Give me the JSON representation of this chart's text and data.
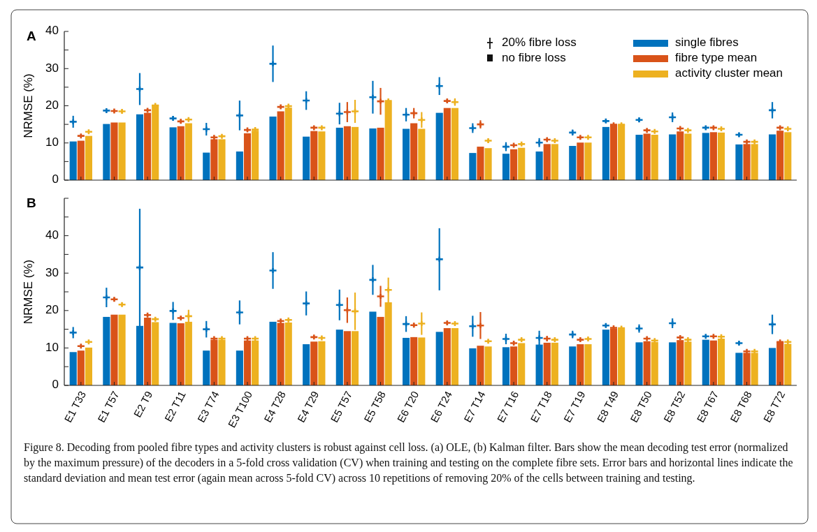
{
  "chart_data": [
    {
      "type": "bar",
      "title": "A",
      "ylabel": "NRMSE (%)",
      "legend": "top right",
      "grid": false,
      "tick_labels": "y",
      "categories": [
        "E1 T33",
        "E1 T57",
        "E2 T9",
        "E2 T11",
        "E3 T74",
        "E3 T100",
        "E4 T28",
        "E4 T29",
        "E5 T57",
        "E5 T58",
        "E6 T20",
        "E6 T24",
        "E7 T14",
        "E7 T16",
        "E7 T18",
        "E7 T19",
        "E8 T49",
        "E8 T50",
        "E8 T52",
        "E8 T67",
        "E8 T68",
        "E8 T72"
      ],
      "ylim": [
        0,
        40
      ],
      "yticks": [
        0,
        {
          "value": 5,
          "label": null
        },
        10,
        {
          "value": 15,
          "label": null
        },
        20,
        {
          "value": 25,
          "label": null
        },
        30,
        {
          "value": 35,
          "label": null
        },
        40
      ],
      "annotations": [
        "20% fibre loss",
        "no fibre loss"
      ],
      "series": [
        {
          "name": "single fibres",
          "color": "#0072bd",
          "values": [
            10.4,
            15.1,
            17.7,
            14.2,
            7.4,
            7.7,
            17.1,
            11.7,
            14.1,
            13.9,
            13.8,
            18.1,
            7.3,
            7.1,
            7.7,
            9.2,
            14.3,
            12.2,
            12.3,
            12.7,
            9.6,
            12.3
          ]
        },
        {
          "name": "fibre type mean",
          "color": "#d95319",
          "values": [
            10.6,
            15.5,
            18.1,
            14.5,
            11.0,
            12.6,
            18.5,
            13.2,
            14.5,
            14.1,
            15.3,
            19.4,
            9.0,
            8.3,
            9.7,
            10.1,
            15.0,
            12.5,
            13.1,
            12.9,
            9.7,
            13.3
          ]
        },
        {
          "name": "activity cluster mean",
          "color": "#edb120",
          "values": [
            11.9,
            15.5,
            20.2,
            15.3,
            11.0,
            13.3,
            19.5,
            13.1,
            14.3,
            21.1,
            13.8,
            19.4,
            8.6,
            8.7,
            9.7,
            10.1,
            15.0,
            12.2,
            12.5,
            12.8,
            9.7,
            12.9
          ]
        },
        {
          "type": "scatter",
          "marker": "cross",
          "color": "#0072bd",
          "x": [
            "E1 T33",
            "E1 T57",
            "E2 T9",
            "E2 T11",
            "E3 T74",
            "E3 T100",
            "E4 T28",
            "E4 T29",
            "E5 T57",
            "E5 T58",
            "E6 T20",
            "E6 T24",
            "E7 T14",
            "E7 T16",
            "E7 T18",
            "E7 T19",
            "E8 T49",
            "E8 T50",
            "E8 T52",
            "E8 T67",
            "E8 T68",
            "E8 T72"
          ],
          "values": [
            15.7,
            18.7,
            24.5,
            16.6,
            13.7,
            17.4,
            31.3,
            21.4,
            17.9,
            22.3,
            17.6,
            25.3,
            14.0,
            9.0,
            10.1,
            12.8,
            15.9,
            16.2,
            16.9,
            14.1,
            12.2,
            18.8
          ],
          "errors": [
            1.6,
            0.2,
            4.3,
            0.6,
            1.7,
            4.0,
            4.9,
            2.5,
            2.9,
            4.4,
            1.8,
            2.4,
            1.3,
            1.2,
            1.2,
            0.8,
            0.5,
            0.6,
            1.3,
            0.3,
            0.5,
            2.2
          ]
        },
        {
          "type": "scatter",
          "marker": "cross",
          "color": "#d95319",
          "x": [
            "E1 T33",
            "E1 T57",
            "E2 T9",
            "E2 T11",
            "E3 T74",
            "E3 T100",
            "E4 T28",
            "E4 T29",
            "E5 T57",
            "E5 T58",
            "E6 T20",
            "E6 T24",
            "E7 T14",
            "E7 T16",
            "E7 T18",
            "E7 T19",
            "E8 T49",
            "E8 T50",
            "E8 T52",
            "E8 T67",
            "E8 T68",
            "E8 T72"
          ],
          "values": [
            11.9,
            18.6,
            18.8,
            15.8,
            11.5,
            13.5,
            19.7,
            14.1,
            18.3,
            21.2,
            18.0,
            21.3,
            15.0,
            9.4,
            10.9,
            11.5,
            14.9,
            13.4,
            13.9,
            14.1,
            10.3,
            14.1
          ],
          "errors": [
            0.3,
            0.3,
            0.2,
            0.6,
            0.4,
            0.3,
            0.3,
            0.3,
            2.7,
            3.6,
            1.4,
            0.5,
            1.1,
            0.3,
            0.4,
            0.3,
            0.2,
            0.3,
            0.2,
            0.3,
            0.3,
            0.3
          ]
        },
        {
          "type": "scatter",
          "marker": "cross",
          "color": "#edb120",
          "x": [
            "E1 T33",
            "E1 T57",
            "E2 T9",
            "E2 T11",
            "E3 T74",
            "E3 T100",
            "E4 T28",
            "E4 T29",
            "E5 T57",
            "E5 T58",
            "E6 T20",
            "E6 T24",
            "E7 T14",
            "E7 T16",
            "E7 T18",
            "E7 T19",
            "E8 T49",
            "E8 T50",
            "E8 T52",
            "E8 T67",
            "E8 T68",
            "E8 T72"
          ],
          "values": [
            13.0,
            18.5,
            20.1,
            16.3,
            11.8,
            13.6,
            19.9,
            14.1,
            18.5,
            21.3,
            16.2,
            21.0,
            10.6,
            9.7,
            10.6,
            11.5,
            14.9,
            13.1,
            13.4,
            13.8,
            10.3,
            13.8
          ],
          "errors": [
            0.3,
            0.5,
            0.2,
            0.4,
            0.3,
            0.3,
            0.3,
            0.3,
            3.1,
            0.3,
            2.1,
            1.0,
            0.4,
            0.3,
            0.3,
            0.3,
            0.2,
            0.3,
            0.3,
            0.3,
            0.3,
            0.3
          ]
        }
      ]
    },
    {
      "type": "bar",
      "title": "B",
      "ylabel": "NRMSE (%)",
      "legend": false,
      "grid": false,
      "categories": [
        "E1 T33",
        "E1 T57",
        "E2 T9",
        "E2 T11",
        "E3 T74",
        "E3 T100",
        "E4 T28",
        "E4 T29",
        "E5 T57",
        "E5 T58",
        "E6 T20",
        "E6 T24",
        "E7 T14",
        "E7 T16",
        "E7 T18",
        "E7 T19",
        "E8 T49",
        "E8 T50",
        "E8 T52",
        "E8 T67",
        "E8 T68",
        "E8 T72"
      ],
      "ylim": [
        0,
        50
      ],
      "yticks": [
        0,
        {
          "value": 5,
          "label": null
        },
        10,
        {
          "value": 15,
          "label": null
        },
        20,
        {
          "value": 25,
          "label": null
        },
        30,
        {
          "value": 35,
          "label": null
        },
        40,
        {
          "value": 45,
          "label": null
        },
        {
          "value": 50,
          "label": null
        }
      ],
      "annotations": [
        "Figure 8. Decoding from pooled fibre types and activity clusters is robust against cell loss. (a) OLE, (b) Kalman filter. Bars show the mean decoding test error (normalized by the maximum pressure) of the decoders in a 5-fold cross validation (CV) when training and testing on the complete fibre sets. Error bars and horizontal lines indicate the standard deviation and mean test error (again mean across 5-fold CV) across 10 repetitions of removing 20% of the cells between training and testing."
      ],
      "series": [
        {
          "color": "#0072bd",
          "values": [
            8.9,
            18.3,
            15.9,
            16.7,
            9.3,
            9.3,
            17.0,
            11.0,
            14.9,
            19.7,
            12.7,
            14.3,
            9.9,
            10.2,
            10.9,
            10.4,
            14.9,
            11.5,
            11.5,
            12.2,
            8.7,
            10.0
          ]
        },
        {
          "color": "#d95319",
          "values": [
            9.3,
            18.9,
            18.1,
            16.6,
            12.2,
            12.0,
            16.7,
            11.7,
            14.5,
            18.3,
            12.9,
            15.3,
            10.6,
            10.4,
            11.4,
            11.0,
            15.2,
            11.8,
            12.1,
            12.0,
            8.7,
            11.6
          ]
        },
        {
          "color": "#edb120",
          "values": [
            10.1,
            18.9,
            16.9,
            17.0,
            12.2,
            12.0,
            16.8,
            11.8,
            14.5,
            22.2,
            12.8,
            15.3,
            10.4,
            11.3,
            11.4,
            11.0,
            15.1,
            11.6,
            11.7,
            12.5,
            8.7,
            11.1
          ]
        },
        {
          "type": "scatter",
          "marker": "cross",
          "color": "#0072bd",
          "x": [
            "E1 T33",
            "E1 T57",
            "E2 T9",
            "E2 T11",
            "E3 T74",
            "E3 T100",
            "E4 T28",
            "E4 T29",
            "E5 T57",
            "E5 T58",
            "E6 T20",
            "E6 T24",
            "E7 T14",
            "E7 T16",
            "E7 T18",
            "E7 T19",
            "E8 T49",
            "E8 T50",
            "E8 T52",
            "E8 T67",
            "E8 T68",
            "E8 T72"
          ],
          "values": [
            14.1,
            23.5,
            31.5,
            19.9,
            15.0,
            19.5,
            30.7,
            21.9,
            21.5,
            28.2,
            16.4,
            33.7,
            15.8,
            12.4,
            12.7,
            13.6,
            16.0,
            15.2,
            16.6,
            13.1,
            11.3,
            16.3
          ],
          "errors": [
            1.5,
            2.6,
            15.7,
            2.4,
            2.2,
            3.2,
            4.9,
            3.2,
            4.1,
            4.0,
            2.1,
            8.3,
            2.8,
            1.4,
            1.9,
            1.0,
            0.5,
            1.1,
            1.3,
            0.3,
            0.4,
            2.6
          ]
        },
        {
          "type": "scatter",
          "marker": "cross",
          "color": "#d95319",
          "x": [
            "E1 T33",
            "E1 T57",
            "E2 T9",
            "E2 T11",
            "E3 T74",
            "E3 T100",
            "E4 T28",
            "E4 T29",
            "E5 T57",
            "E5 T58",
            "E6 T20",
            "E6 T24",
            "E7 T14",
            "E7 T16",
            "E7 T18",
            "E7 T19",
            "E8 T49",
            "E8 T50",
            "E8 T52",
            "E8 T67",
            "E8 T68",
            "E8 T72"
          ],
          "values": [
            10.5,
            23.0,
            18.8,
            18.0,
            12.5,
            12.5,
            17.2,
            12.9,
            20.1,
            23.8,
            16.1,
            16.7,
            16.0,
            11.3,
            12.5,
            12.2,
            15.4,
            12.5,
            12.8,
            13.1,
            9.1,
            11.6
          ],
          "errors": [
            0.3,
            0.5,
            0.3,
            0.3,
            0.3,
            0.3,
            0.3,
            0.3,
            3.4,
            2.8,
            0.6,
            0.5,
            3.6,
            0.5,
            0.7,
            0.3,
            0.3,
            0.3,
            0.3,
            0.3,
            0.2,
            0.3
          ]
        },
        {
          "type": "scatter",
          "marker": "cross",
          "color": "#edb120",
          "x": [
            "E1 T33",
            "E1 T57",
            "E2 T9",
            "E2 T11",
            "E3 T74",
            "E3 T100",
            "E4 T28",
            "E4 T29",
            "E5 T57",
            "E5 T58",
            "E6 T20",
            "E6 T24",
            "E7 T14",
            "E7 T16",
            "E7 T18",
            "E7 T19",
            "E8 T49",
            "E8 T50",
            "E8 T52",
            "E8 T67",
            "E8 T68",
            "E8 T72"
          ],
          "values": [
            11.6,
            21.6,
            17.7,
            18.5,
            12.5,
            12.5,
            17.5,
            12.7,
            19.8,
            25.5,
            16.5,
            16.5,
            11.8,
            12.2,
            12.2,
            12.4,
            15.3,
            12.0,
            12.2,
            13.0,
            9.1,
            11.6
          ],
          "errors": [
            0.3,
            0.5,
            0.4,
            1.7,
            0.3,
            0.3,
            0.3,
            0.3,
            5.0,
            3.3,
            3.0,
            0.3,
            0.3,
            0.3,
            0.3,
            0.3,
            0.3,
            0.3,
            0.3,
            0.3,
            0.2,
            0.3
          ]
        }
      ]
    }
  ]
}
